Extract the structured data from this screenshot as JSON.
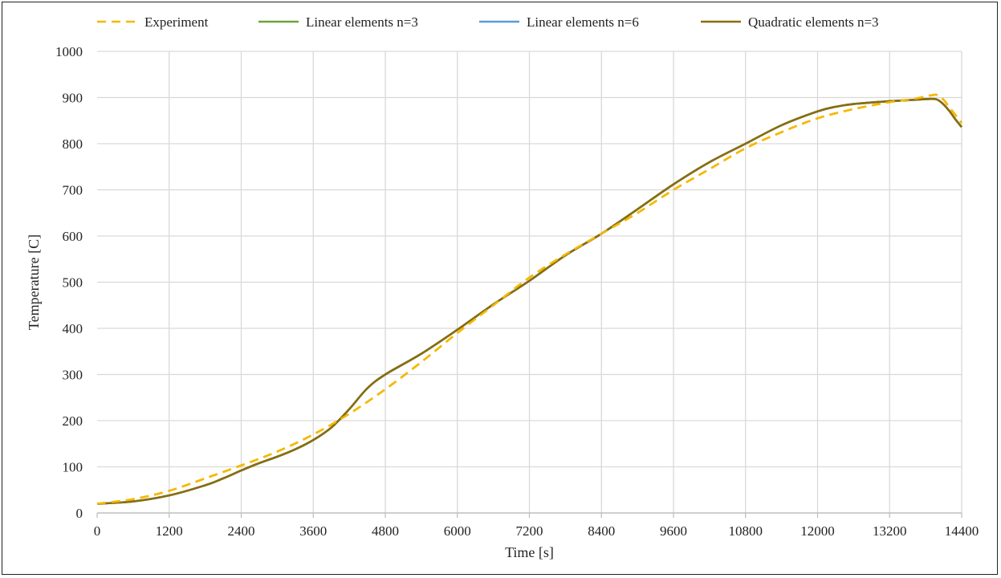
{
  "chart_data": {
    "type": "line",
    "title": "",
    "xlabel": "Time [s]",
    "ylabel": "Temperature [C]",
    "xlim": [
      0,
      14400
    ],
    "ylim": [
      0,
      1000
    ],
    "xticks": [
      0,
      1200,
      2400,
      3600,
      4800,
      6000,
      7200,
      8400,
      9600,
      10800,
      12000,
      13200,
      14400
    ],
    "yticks": [
      0,
      100,
      200,
      300,
      400,
      500,
      600,
      700,
      800,
      900,
      1000
    ],
    "grid": true,
    "legend_position": "top",
    "series": [
      {
        "name": "Experiment",
        "color": "#f5b800",
        "dash": "dashed",
        "x": [
          0,
          600,
          1200,
          1800,
          2400,
          3000,
          3600,
          4200,
          4800,
          5400,
          6000,
          6600,
          7200,
          7800,
          8400,
          9000,
          9600,
          10200,
          10800,
          11400,
          12000,
          12600,
          13200,
          13600,
          13900,
          14000,
          14100,
          14200,
          14400
        ],
        "y": [
          20,
          30,
          48,
          75,
          103,
          133,
          170,
          215,
          268,
          327,
          390,
          450,
          510,
          560,
          605,
          650,
          700,
          745,
          790,
          825,
          855,
          875,
          890,
          897,
          905,
          905,
          895,
          878,
          845
        ]
      },
      {
        "name": "Linear elements n=3",
        "color": "#6fa33a",
        "dash": "solid",
        "x": [
          0,
          600,
          1200,
          1800,
          2100,
          2400,
          2700,
          3000,
          3300,
          3600,
          3900,
          4200,
          4500,
          4800,
          5400,
          6000,
          6600,
          7200,
          7800,
          8400,
          9000,
          9600,
          10200,
          10800,
          11400,
          12000,
          12300,
          12600,
          13200,
          13600,
          13900,
          14000,
          14100,
          14200,
          14300,
          14400
        ],
        "y": [
          20,
          25,
          38,
          60,
          75,
          92,
          108,
          122,
          138,
          158,
          185,
          225,
          270,
          300,
          345,
          397,
          452,
          503,
          558,
          605,
          658,
          712,
          760,
          800,
          840,
          870,
          880,
          886,
          892,
          895,
          897,
          895,
          885,
          870,
          852,
          836
        ]
      },
      {
        "name": "Linear elements n=6",
        "color": "#5b9bd5",
        "dash": "solid",
        "x": [
          0,
          600,
          1200,
          1800,
          2100,
          2400,
          2700,
          3000,
          3300,
          3600,
          3900,
          4200,
          4500,
          4800,
          5400,
          6000,
          6600,
          7200,
          7800,
          8400,
          9000,
          9600,
          10200,
          10800,
          11400,
          12000,
          12300,
          12600,
          13200,
          13600,
          13900,
          14000,
          14100,
          14200,
          14300,
          14400
        ],
        "y": [
          20,
          25,
          38,
          60,
          75,
          92,
          108,
          122,
          138,
          158,
          185,
          225,
          270,
          300,
          345,
          397,
          452,
          503,
          558,
          605,
          658,
          712,
          760,
          800,
          840,
          870,
          880,
          886,
          892,
          895,
          897,
          895,
          885,
          870,
          852,
          836
        ]
      },
      {
        "name": "Quadratic elements n=3",
        "color": "#8a6d0b",
        "dash": "solid",
        "x": [
          0,
          600,
          1200,
          1800,
          2100,
          2400,
          2700,
          3000,
          3300,
          3600,
          3900,
          4200,
          4500,
          4800,
          5400,
          6000,
          6600,
          7200,
          7800,
          8400,
          9000,
          9600,
          10200,
          10800,
          11400,
          12000,
          12300,
          12600,
          13200,
          13600,
          13900,
          14000,
          14100,
          14200,
          14300,
          14400
        ],
        "y": [
          20,
          25,
          38,
          60,
          75,
          92,
          108,
          122,
          138,
          158,
          185,
          225,
          270,
          300,
          345,
          397,
          452,
          503,
          558,
          605,
          658,
          712,
          760,
          800,
          840,
          870,
          880,
          886,
          892,
          895,
          897,
          895,
          885,
          870,
          852,
          836
        ]
      }
    ]
  }
}
